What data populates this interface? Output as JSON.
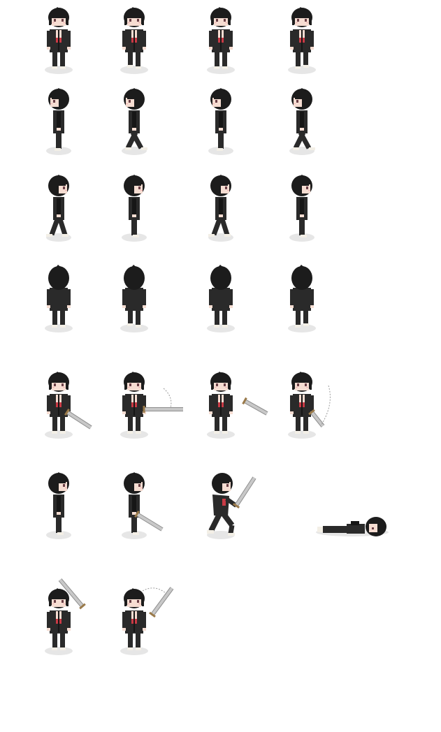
{
  "sprite_sheet": {
    "background": "#ffffff",
    "palette": {
      "hair": "#1c1c1c",
      "jacket": "#2a2a2a",
      "jacket_shade": "#161616",
      "skin": "#f6ddd2",
      "blush": "#f2b3b3",
      "eye": "#6a3f46",
      "shirt": "#c93a45",
      "shoe": "#f3efe6",
      "shadow": "#e6e6e6",
      "blade": "#c8c8c8",
      "blade_edge": "#8e8e8e",
      "hilt": "#9a7a4a",
      "swoosh": "#9a9a9a"
    },
    "rows": [
      {
        "name": "walk-down",
        "frames": [
          {
            "pose": "front",
            "step": 0
          },
          {
            "pose": "front",
            "step": 1
          },
          {
            "pose": "front",
            "step": 0
          },
          {
            "pose": "front",
            "step": -1
          }
        ]
      },
      {
        "name": "walk-left",
        "frames": [
          {
            "pose": "side",
            "facing": "left",
            "step": 0
          },
          {
            "pose": "side",
            "facing": "left",
            "step": 1
          },
          {
            "pose": "side",
            "facing": "left",
            "step": 0
          },
          {
            "pose": "side",
            "facing": "left",
            "step": 1
          }
        ]
      },
      {
        "name": "walk-right",
        "frames": [
          {
            "pose": "side",
            "facing": "right",
            "step": 1
          },
          {
            "pose": "side",
            "facing": "right",
            "step": 0
          },
          {
            "pose": "side",
            "facing": "right",
            "step": 1
          },
          {
            "pose": "side",
            "facing": "right",
            "step": 0
          }
        ]
      },
      {
        "name": "walk-up",
        "frames": [
          {
            "pose": "back",
            "step": 0
          },
          {
            "pose": "back",
            "step": 1
          },
          {
            "pose": "back",
            "step": 0
          },
          {
            "pose": "back",
            "step": -1
          }
        ]
      },
      {
        "name": "sword-attack-front",
        "frames": [
          {
            "pose": "front",
            "sword": "down-right"
          },
          {
            "pose": "front",
            "sword": "horizontal",
            "swoosh": true
          },
          {
            "pose": "front",
            "sword": "thrust"
          },
          {
            "pose": "front",
            "sword": "down-swing",
            "swoosh": true
          }
        ]
      },
      {
        "name": "sword-attack-side-and-down",
        "frames": [
          {
            "pose": "side",
            "facing": "right"
          },
          {
            "pose": "side",
            "facing": "right",
            "sword": "low-right"
          },
          {
            "pose": "lunge",
            "facing": "right",
            "sword": "raised"
          },
          {
            "pose": "knocked-down"
          }
        ]
      },
      {
        "name": "sword-raise",
        "frames": [
          {
            "pose": "front",
            "sword": "overhead"
          },
          {
            "pose": "front",
            "sword": "raised-right",
            "swoosh": true
          }
        ]
      }
    ]
  }
}
